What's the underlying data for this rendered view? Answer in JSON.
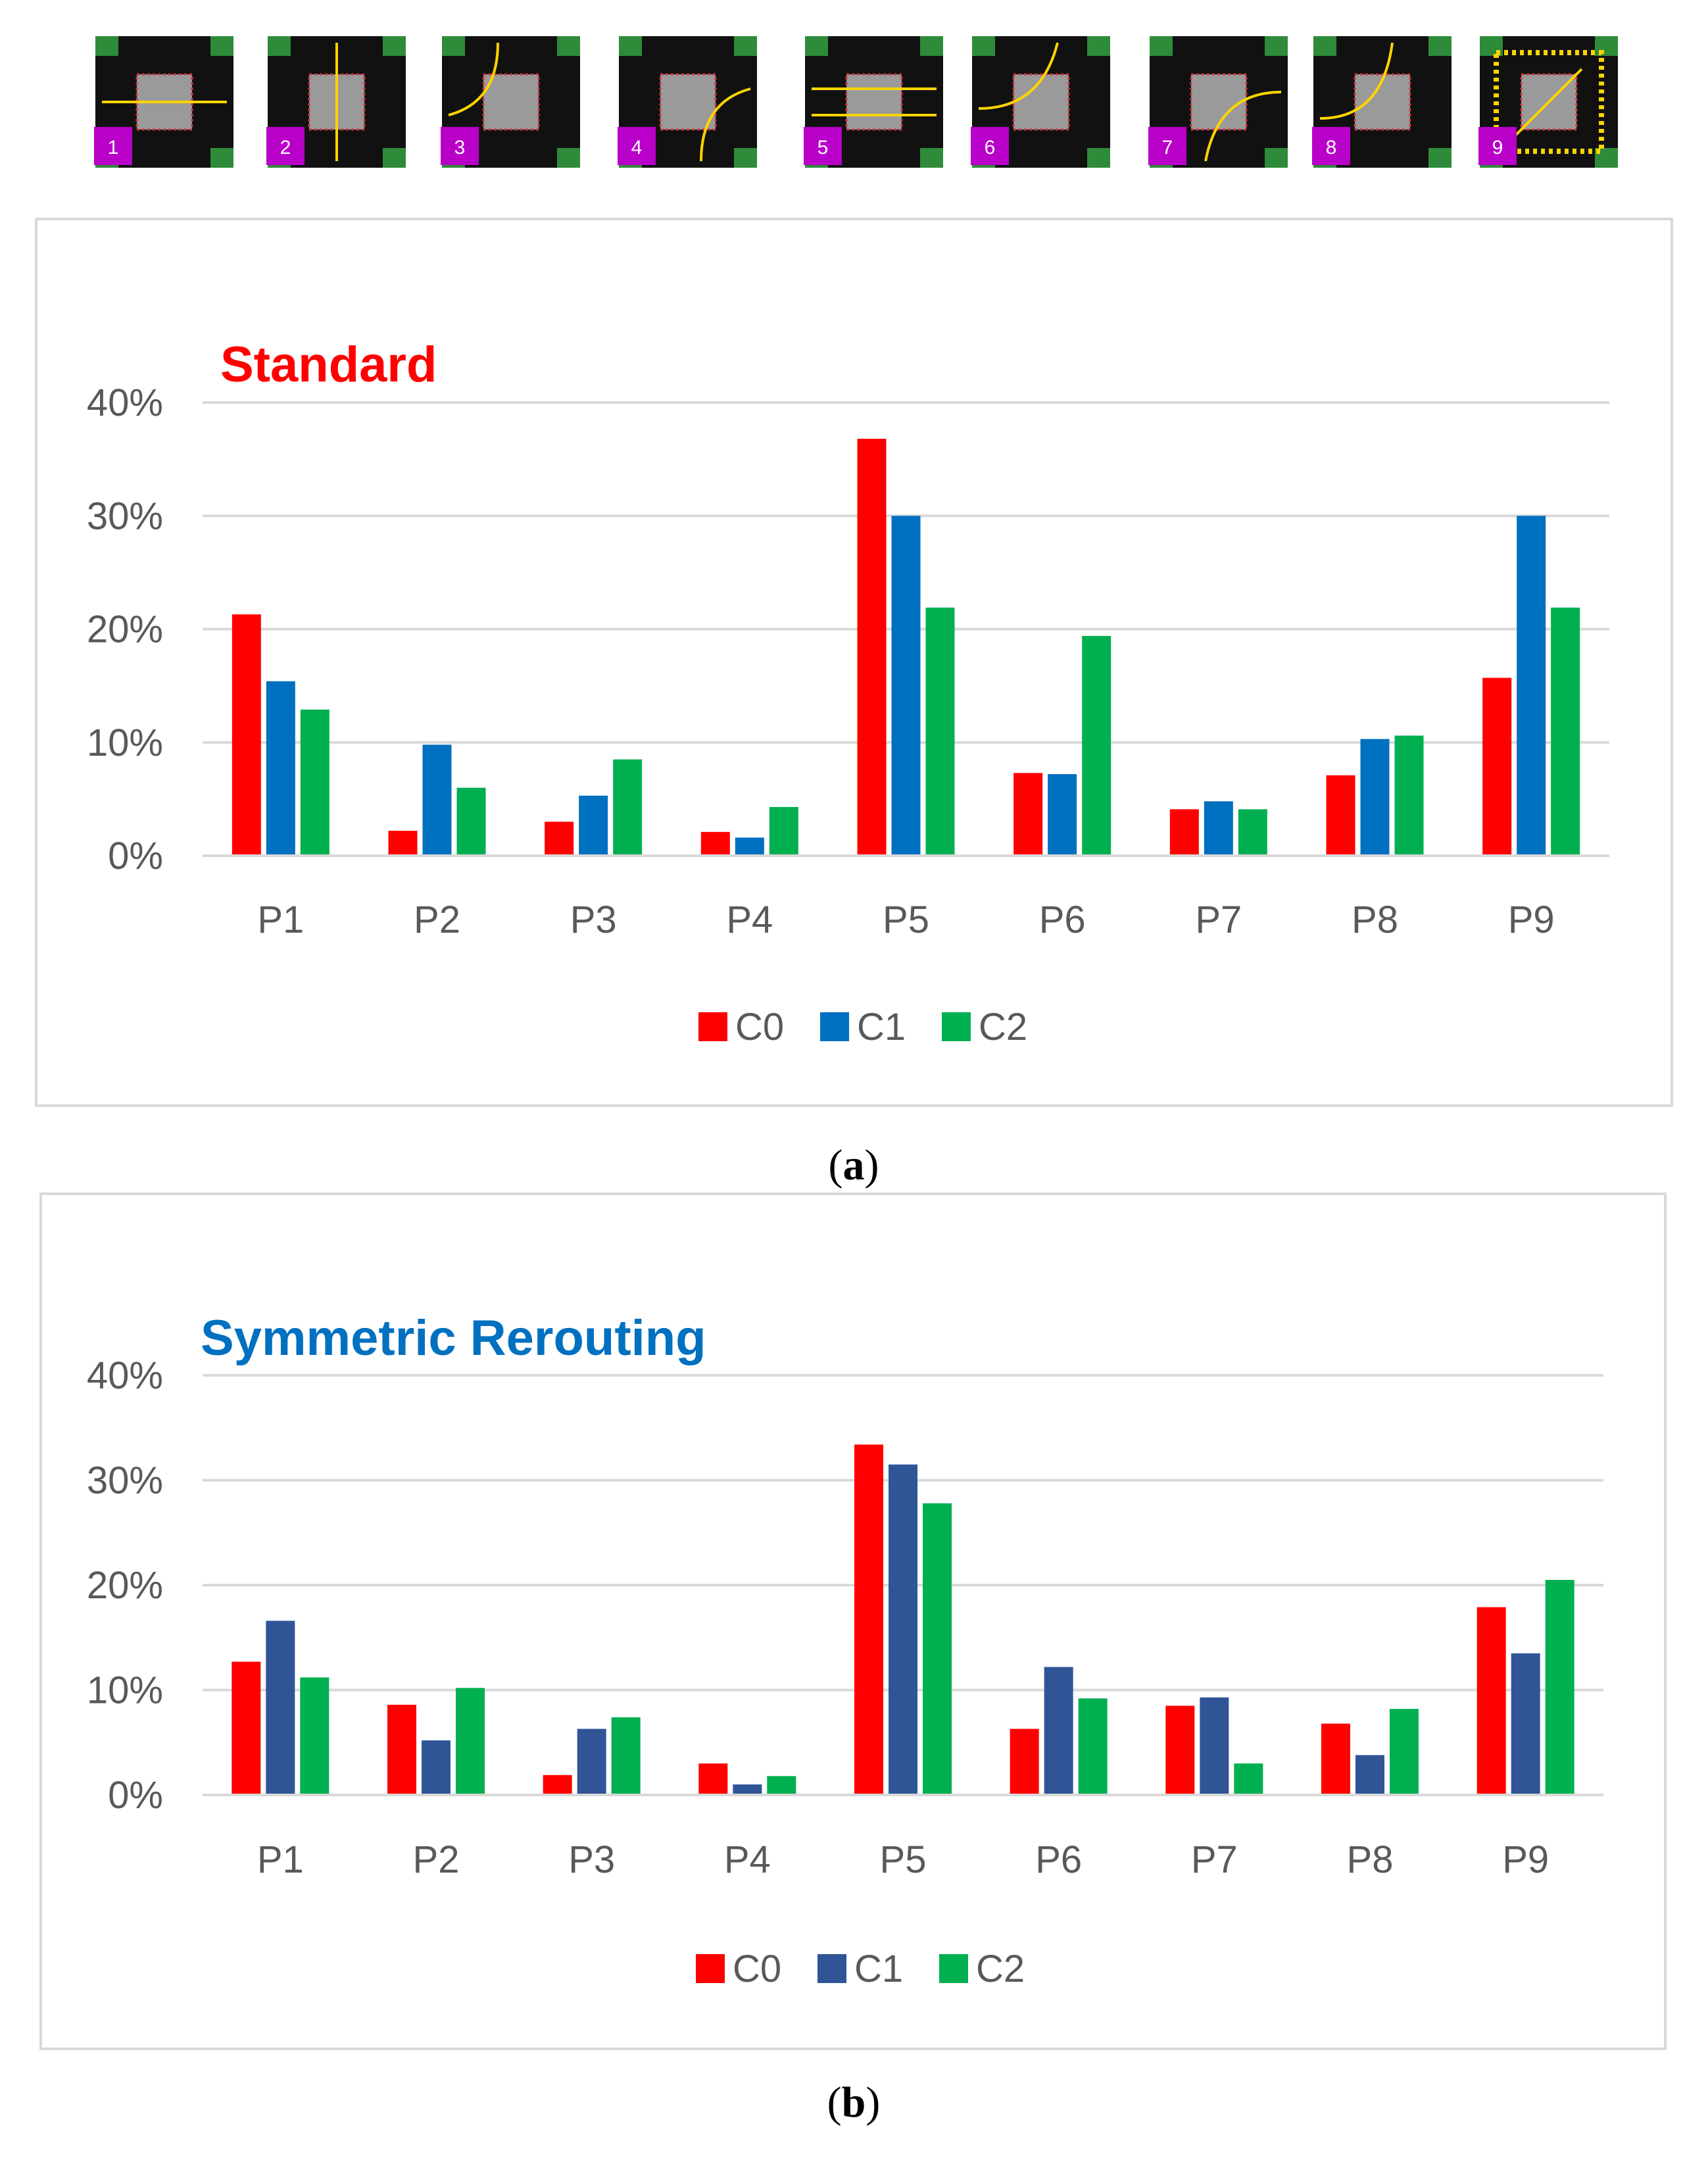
{
  "phase_strip": {
    "tiles": [
      {
        "number": "1"
      },
      {
        "number": "2"
      },
      {
        "number": "3"
      },
      {
        "number": "4"
      },
      {
        "number": "5"
      },
      {
        "number": "6"
      },
      {
        "number": "7"
      },
      {
        "number": "8"
      },
      {
        "number": "9"
      }
    ],
    "colors": {
      "grass": "#2e8b3a",
      "road": "#111111",
      "box": "#9a9a9a",
      "arrow": "#ffd400",
      "badge": "#b800c8",
      "badge_text": "#ffffff",
      "crosswalk": "#ffd400"
    }
  },
  "chart_data": [
    {
      "type": "bar",
      "title": "Standard",
      "title_color": "#ff0000",
      "caption": "(a)",
      "caption_letter": "a",
      "categories": [
        "P1",
        "P2",
        "P3",
        "P4",
        "P5",
        "P6",
        "P7",
        "P8",
        "P9"
      ],
      "series": [
        {
          "name": "C0",
          "color": "#ff0000",
          "values": [
            21.3,
            2.2,
            3.0,
            2.1,
            36.8,
            7.3,
            4.1,
            7.1,
            15.7
          ]
        },
        {
          "name": "C1",
          "color": "#0070c0",
          "values": [
            15.4,
            9.8,
            5.3,
            1.6,
            30.0,
            7.2,
            4.8,
            10.3,
            30.0
          ]
        },
        {
          "name": "C2",
          "color": "#00b050",
          "values": [
            12.9,
            6.0,
            8.5,
            4.3,
            21.9,
            19.4,
            4.1,
            10.6,
            21.9
          ]
        }
      ],
      "ylim": [
        0,
        40
      ],
      "yticks": [
        "0%",
        "10%",
        "20%",
        "30%",
        "40%"
      ],
      "xlabel": "",
      "ylabel": "",
      "grid": true,
      "legend": "bottom-center"
    },
    {
      "type": "bar",
      "title": "Symmetric Rerouting",
      "title_color": "#0070c0",
      "caption": "(b)",
      "caption_letter": "b",
      "categories": [
        "P1",
        "P2",
        "P3",
        "P4",
        "P5",
        "P6",
        "P7",
        "P8",
        "P9"
      ],
      "series": [
        {
          "name": "C0",
          "color": "#ff0000",
          "values": [
            12.7,
            8.6,
            1.9,
            3.0,
            33.4,
            6.3,
            8.5,
            6.8,
            17.9
          ]
        },
        {
          "name": "C1",
          "color": "#2f5597",
          "values": [
            16.6,
            5.2,
            6.3,
            1.0,
            31.5,
            12.2,
            9.3,
            3.8,
            13.5
          ]
        },
        {
          "name": "C2",
          "color": "#00b050",
          "values": [
            11.2,
            10.2,
            7.4,
            1.8,
            27.8,
            9.2,
            3.0,
            8.2,
            20.5
          ]
        }
      ],
      "ylim": [
        0,
        40
      ],
      "yticks": [
        "0%",
        "10%",
        "20%",
        "30%",
        "40%"
      ],
      "xlabel": "",
      "ylabel": "",
      "grid": true,
      "legend": "bottom-center"
    }
  ]
}
